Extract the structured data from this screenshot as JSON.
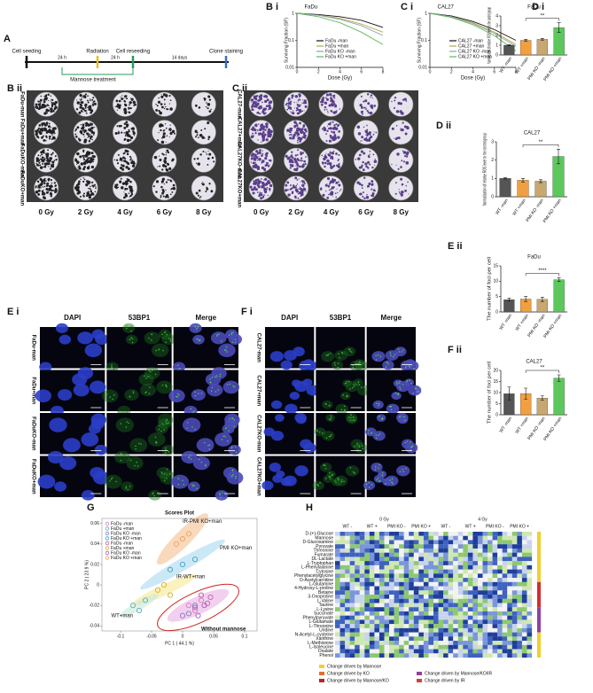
{
  "panel_labels": [
    "A",
    "B i",
    "C i",
    "D i",
    "B ii",
    "C ii",
    "D ii",
    "E i",
    "F i",
    "E ii",
    "F ii",
    "G",
    "H"
  ],
  "timeline": {
    "steps": [
      "Cell seeding",
      "Radiation",
      "Cell reseeding",
      "Clone staining"
    ],
    "intervals": [
      "24 h",
      "24 h",
      "14 days"
    ],
    "treatment": "Mannose treatment"
  },
  "survival": [
    {
      "type": "line",
      "title": "FaDu",
      "y_label": "Surviving Fraction (SF)",
      "x_label": "Dose (Gy)",
      "log_y": true,
      "x": [
        0,
        2,
        4,
        6,
        8
      ],
      "xlim": [
        0,
        8
      ],
      "xticks": [
        0,
        2,
        4,
        6,
        8
      ],
      "ylim": [
        0.01,
        1
      ],
      "yticks": [
        0.01,
        0.1,
        1
      ],
      "series": [
        {
          "name": "FaDu -man",
          "color": "#111111",
          "values": [
            1,
            0.9,
            0.75,
            0.55,
            0.3
          ]
        },
        {
          "name": "FaDu +man",
          "color": "#b5a642",
          "values": [
            1,
            0.85,
            0.65,
            0.4,
            0.2
          ]
        },
        {
          "name": "FaDu KO -man",
          "color": "#8fa0b0",
          "values": [
            1,
            0.85,
            0.6,
            0.35,
            0.15
          ]
        },
        {
          "name": "FaDu KO +man",
          "color": "#5cb85c",
          "values": [
            1,
            0.75,
            0.45,
            0.2,
            0.07
          ]
        }
      ]
    },
    {
      "type": "line",
      "title": "CAL27",
      "y_label": "Surviving Fraction (SF)",
      "x_label": "Dose (Gy)",
      "log_y": true,
      "x": [
        0,
        2,
        4,
        6,
        8
      ],
      "xlim": [
        0,
        8
      ],
      "xticks": [
        0,
        2,
        4,
        6,
        8
      ],
      "ylim": [
        0.01,
        1
      ],
      "yticks": [
        0.01,
        0.1,
        1
      ],
      "series": [
        {
          "name": "CAL27 -man",
          "color": "#111111",
          "values": [
            1,
            0.8,
            0.5,
            0.25,
            0.1
          ]
        },
        {
          "name": "CAL27 +man",
          "color": "#b5a642",
          "values": [
            1,
            0.75,
            0.45,
            0.2,
            0.07
          ]
        },
        {
          "name": "CAL27 KO -man",
          "color": "#8fa0b0",
          "values": [
            1,
            0.75,
            0.42,
            0.18,
            0.06
          ]
        },
        {
          "name": "CAL27 KO +man",
          "color": "#5cb85c",
          "values": [
            1,
            0.7,
            0.38,
            0.15,
            0.04
          ]
        }
      ]
    }
  ],
  "bars": [
    {
      "type": "bar",
      "title": "FaDu",
      "y_label": "Normalization of relative ROS level to the control group",
      "categories": [
        "WT -man",
        "WT +man",
        "PMI KO -man",
        "PMI KO +man"
      ],
      "colors": [
        "#555555",
        "#f0a040",
        "#c8a870",
        "#5cc85c"
      ],
      "values": [
        1,
        1.5,
        1.6,
        2.8
      ],
      "errors": [
        0.05,
        0.1,
        0.1,
        0.5
      ],
      "ylim": [
        0,
        4
      ],
      "yticks": [
        0,
        1,
        2,
        3,
        4
      ],
      "annotation": "**"
    },
    {
      "type": "bar",
      "title": "CAL27",
      "y_label": "Normalization of relative ROS level to the control group",
      "categories": [
        "WT -man",
        "WT +man",
        "PMI KO -man",
        "PMI KO +man"
      ],
      "colors": [
        "#555555",
        "#f0a040",
        "#c8a870",
        "#5cc85c"
      ],
      "values": [
        1,
        0.9,
        0.85,
        2.2
      ],
      "errors": [
        0.03,
        0.1,
        0.08,
        0.4
      ],
      "ylim": [
        0,
        3
      ],
      "yticks": [
        0,
        1,
        2,
        3
      ],
      "annotation": "**"
    },
    {
      "type": "bar",
      "title": "FaDu",
      "y_label": "The number of foci per cell",
      "categories": [
        "WT -man",
        "WT +man",
        "PMI KO -man",
        "PMI KO +man"
      ],
      "colors": [
        "#555555",
        "#f0a040",
        "#c8a870",
        "#5cc85c"
      ],
      "values": [
        4,
        4.2,
        4.1,
        10.5
      ],
      "errors": [
        0.5,
        0.8,
        0.7,
        0.6
      ],
      "ylim": [
        0,
        15
      ],
      "yticks": [
        0,
        5,
        10,
        15
      ],
      "annotation": "****"
    },
    {
      "type": "bar",
      "title": "CAL27",
      "y_label": "The number of foci per cell",
      "categories": [
        "WT -man",
        "WT +man",
        "PMI KO -man",
        "PMI KO +man"
      ],
      "colors": [
        "#555555",
        "#f0a040",
        "#c8a870",
        "#5cc85c"
      ],
      "values": [
        9.5,
        9.5,
        7.5,
        16.5
      ],
      "errors": [
        3,
        2.5,
        1,
        1.5
      ],
      "ylim": [
        0,
        20
      ],
      "yticks": [
        0,
        5,
        10,
        15,
        20
      ],
      "annotation": "**"
    }
  ],
  "plates": [
    {
      "rows": [
        "FaDu-man",
        "FaDu+man",
        "FaDuKO-man",
        "FaDuKO+man"
      ],
      "columns": [
        "0 Gy",
        "2 Gy",
        "4 Gy",
        "6 Gy",
        "8 Gy"
      ]
    },
    {
      "rows": [
        "CAL27-man",
        "CAL27+man",
        "CAL27KO-man",
        "CAL27KO+man"
      ],
      "columns": [
        "0 Gy",
        "2 Gy",
        "4 Gy",
        "6 Gy",
        "8 Gy"
      ]
    }
  ],
  "microscopy": [
    {
      "columns": [
        "DAPI",
        "53BP1",
        "Merge"
      ],
      "rows": [
        "FaDu-man",
        "FaDu+man",
        "FaDuKO-man",
        "FaDuKO+man"
      ]
    },
    {
      "columns": [
        "DAPI",
        "53BP1",
        "Merge"
      ],
      "rows": [
        "CAL27-man",
        "CAL27+man",
        "CAL27KO-man",
        "CAL27KO+man"
      ]
    }
  ],
  "scores": {
    "type": "scatter",
    "title": "Scores Plot",
    "x_label": "PC 1 ( 44.1 %)",
    "y_label": "PC 2 ( 23.9 %)",
    "xlim": [
      -0.13,
      0.12
    ],
    "xticks": [
      -0.1,
      -0.05,
      0,
      0.05,
      0.1
    ],
    "ylim": [
      -0.045,
      0.065
    ],
    "yticks": [
      -0.04,
      -0.02,
      0,
      0.02,
      0.04,
      0.06
    ],
    "annotations": [
      "IR-PMI KO+man",
      "PMI KO+man",
      "IR-WT+man",
      "WT+man",
      "Without mannose"
    ],
    "series": [
      {
        "name": "FaDu -man",
        "color": "#d080c0",
        "x": [
          0.01,
          0.02,
          0.03
        ],
        "y": [
          -0.02,
          -0.025,
          -0.015
        ]
      },
      {
        "name": "FaDu +man",
        "color": "#60b0b0",
        "x": [
          -0.08,
          -0.07,
          -0.06
        ],
        "y": [
          -0.02,
          -0.025,
          -0.015
        ]
      },
      {
        "name": "FaDu KO -man",
        "color": "#8080c0",
        "x": [
          0,
          0.01,
          0.02
        ],
        "y": [
          -0.03,
          -0.028,
          -0.02
        ]
      },
      {
        "name": "FaDu KO +man",
        "color": "#40a0c0",
        "x": [
          -0.02,
          0,
          0.02
        ],
        "y": [
          0.015,
          0.02,
          0.025
        ]
      },
      {
        "name": "FaDu -man",
        "color": "#c060a0",
        "x": [
          0.03,
          0.04,
          0.045
        ],
        "y": [
          -0.01,
          -0.018,
          -0.012
        ]
      },
      {
        "name": "FaDu +man",
        "color": "#d0b030",
        "x": [
          -0.04,
          -0.03,
          -0.02
        ],
        "y": [
          -0.005,
          0,
          -0.01
        ]
      },
      {
        "name": "FaDu KO -man",
        "color": "#a060c0",
        "x": [
          0.02,
          0.025,
          0.035
        ],
        "y": [
          -0.022,
          -0.03,
          -0.02
        ]
      },
      {
        "name": "FaDu KO +man",
        "color": "#f0a060",
        "x": [
          -0.01,
          0,
          0.01
        ],
        "y": [
          0.04,
          0.045,
          0.05
        ]
      }
    ]
  },
  "heatmap": {
    "doses": [
      "0 Gy",
      "4 Gy"
    ],
    "groups": [
      "WT -",
      "WT +",
      "PMI KO -",
      "PMI KO +",
      "WT -",
      "WT +",
      "PMI KO -",
      "PMI KO +"
    ],
    "metabolites": [
      "D-(+)-Glucose",
      "Mannose",
      "D-Glucosamine",
      "Pyruvate",
      "Threonine",
      "Fumarate",
      "DL-Lactate",
      "L-Tryptophan",
      "L-Phenylalanine",
      "Cytosine",
      "Phenylacetylglycine",
      "O-Acetylcarnitine",
      "L-Glutamine",
      "4-Hydroxy-L-proline",
      "Betaine",
      "3-Oxoproline",
      "L-Valine",
      "Taurine",
      "L-Lysine",
      "Succinate",
      "Phenylpyruvate",
      "L-Glutamate",
      "L-Threonine",
      "Uridine",
      "N-Acetyl-L-cysteine",
      "Xanthine",
      "L-Methionine",
      "L-Isoleucine",
      "Oxalate",
      "Phenol"
    ],
    "legend": [
      "Change driven by Mannose",
      "Change driven by KO",
      "Change driven by Mannose/KO",
      "Change driven by Mannose/KO/IR",
      "Change driven by IR"
    ]
  }
}
